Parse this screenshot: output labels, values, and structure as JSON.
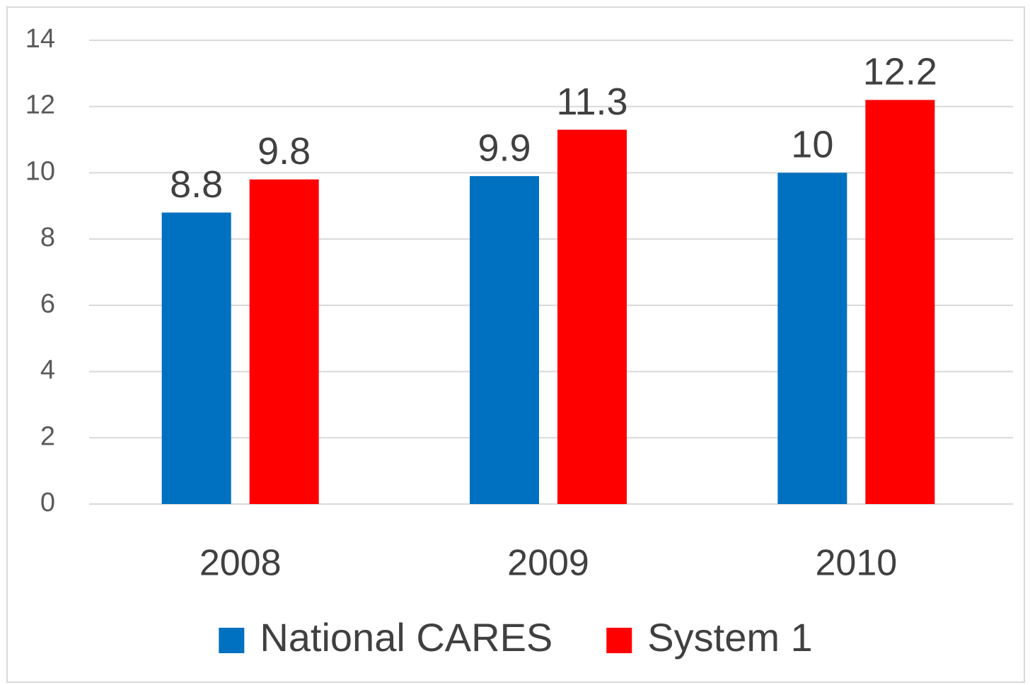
{
  "chart_data": {
    "type": "bar",
    "categories": [
      "2008",
      "2009",
      "2010"
    ],
    "series": [
      {
        "name": "National CARES",
        "color": "#0070c0",
        "values": [
          8.8,
          9.9,
          10
        ]
      },
      {
        "name": "System 1",
        "color": "#ff0000",
        "values": [
          9.8,
          11.3,
          12.2
        ]
      }
    ],
    "ylim": [
      0,
      14
    ],
    "yticks": [
      0,
      2,
      4,
      6,
      8,
      10,
      12,
      14
    ],
    "grid": true,
    "legend": "bottom"
  }
}
